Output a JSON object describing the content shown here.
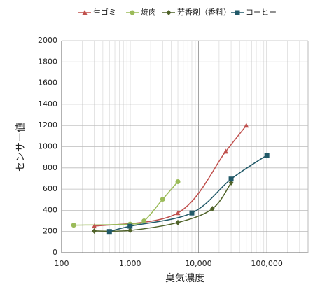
{
  "chart_data": {
    "type": "line",
    "xlabel": "臭気濃度",
    "ylabel": "センサー値",
    "x_scale": "log",
    "xlim": [
      100,
      400000
    ],
    "xticks": [
      100,
      {
        "value": 1000,
        "label": "1,000"
      },
      {
        "value": 10000,
        "label": "10,000"
      },
      {
        "value": 100000,
        "label": "100,000"
      }
    ],
    "ylim": [
      0,
      2000
    ],
    "yticks": [
      0,
      200,
      400,
      600,
      800,
      1000,
      1200,
      1400,
      1600,
      1800,
      2000
    ],
    "grid": true,
    "legend": "top",
    "series": [
      {
        "name": "生ゴミ",
        "color": "#c0504d",
        "marker": "triangle",
        "x": [
          300,
          5000,
          25000,
          50000
        ],
        "values": [
          250,
          375,
          955,
          1200
        ]
      },
      {
        "name": "焼肉",
        "color": "#9bbb59",
        "marker": "circle",
        "x": [
          150,
          1000,
          1600,
          3000,
          5000
        ],
        "values": [
          260,
          270,
          300,
          505,
          670
        ]
      },
      {
        "name": "芳香剤（香料）",
        "color": "#4f6228",
        "marker": "diamond",
        "x": [
          300,
          1000,
          5000,
          16000,
          30000
        ],
        "values": [
          205,
          210,
          285,
          415,
          660
        ]
      },
      {
        "name": "コーヒー",
        "color": "#215968",
        "marker": "square",
        "x": [
          500,
          1000,
          8000,
          30000,
          100000
        ],
        "values": [
          200,
          250,
          375,
          695,
          920
        ]
      }
    ]
  }
}
